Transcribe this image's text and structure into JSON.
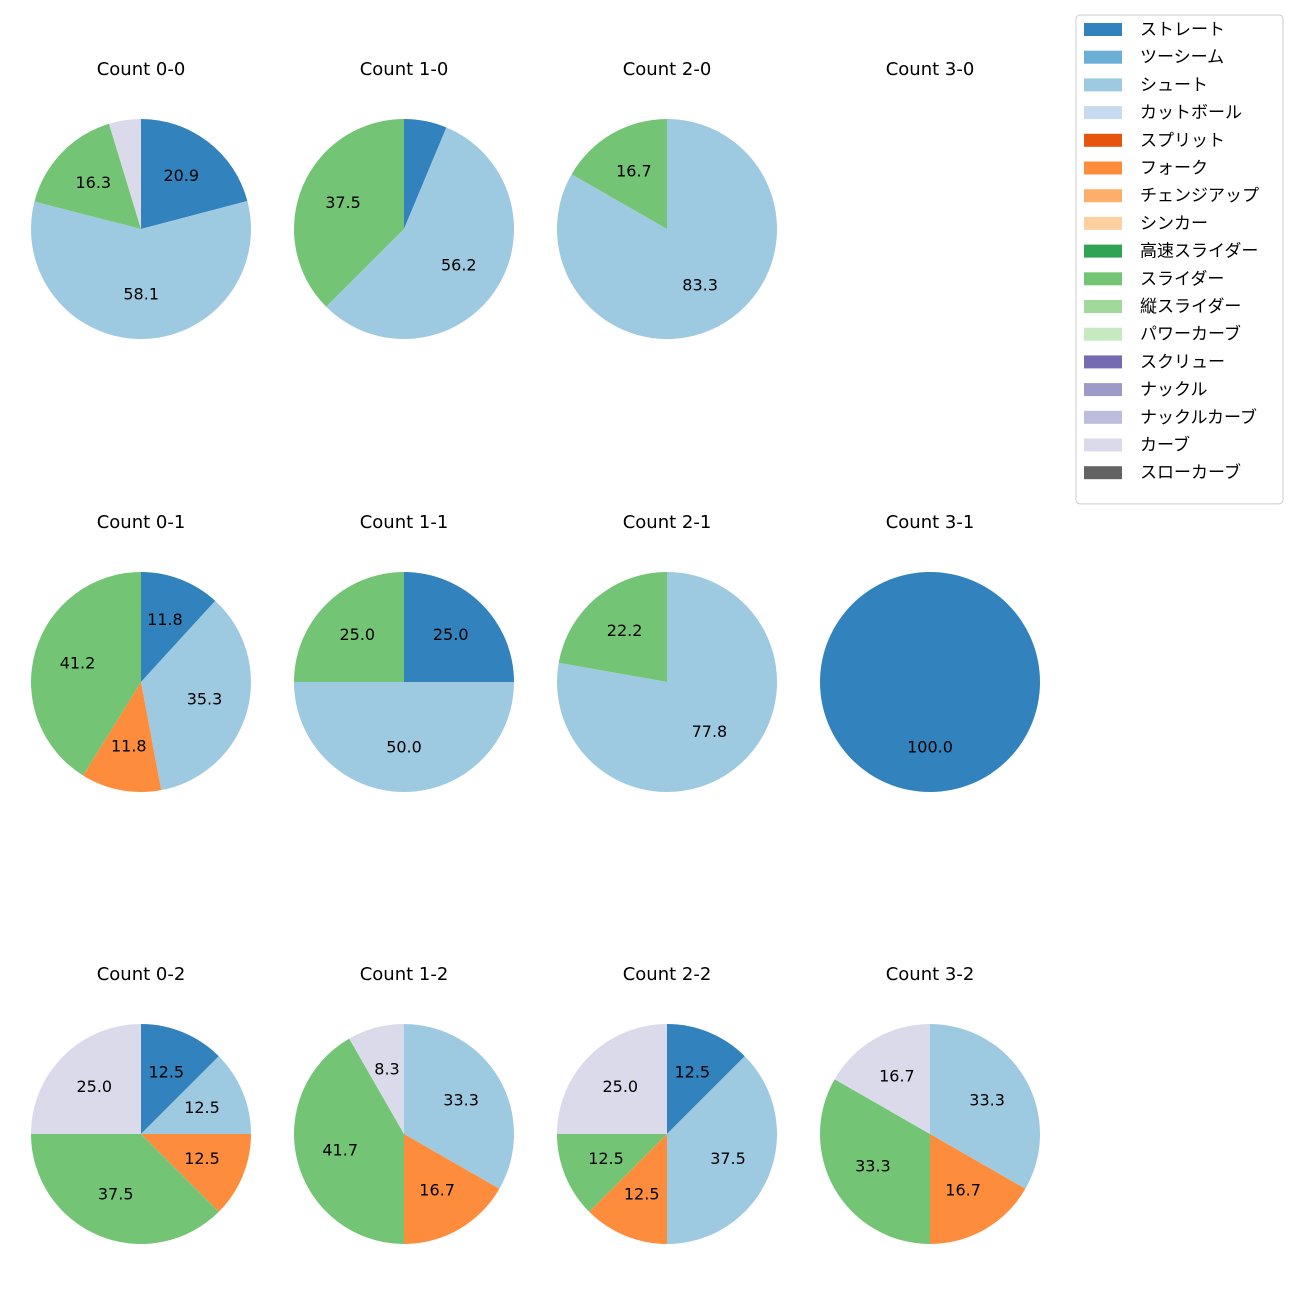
{
  "chart_data": {
    "type": "pie",
    "legend": {
      "placement": "top-right",
      "entries": [
        {
          "label": "ストレート",
          "color": "#3182bd"
        },
        {
          "label": "ツーシーム",
          "color": "#6baed6"
        },
        {
          "label": "シュート",
          "color": "#9ecae1"
        },
        {
          "label": "カットボール",
          "color": "#c6dbef"
        },
        {
          "label": "スプリット",
          "color": "#e6550d"
        },
        {
          "label": "フォーク",
          "color": "#fd8d3c"
        },
        {
          "label": "チェンジアップ",
          "color": "#fdae6b"
        },
        {
          "label": "シンカー",
          "color": "#fdd0a2"
        },
        {
          "label": "高速スライダー",
          "color": "#31a354"
        },
        {
          "label": "スライダー",
          "color": "#74c476"
        },
        {
          "label": "縦スライダー",
          "color": "#a1d99b"
        },
        {
          "label": "パワーカーブ",
          "color": "#c7e9c0"
        },
        {
          "label": "スクリュー",
          "color": "#756bb1"
        },
        {
          "label": "ナックル",
          "color": "#9e9ac8"
        },
        {
          "label": "ナックルカーブ",
          "color": "#bcbddc"
        },
        {
          "label": "カーブ",
          "color": "#dadaeb"
        },
        {
          "label": "スローカーブ",
          "color": "#636363"
        }
      ]
    },
    "charts": [
      {
        "title": "Count 0-0",
        "slices": [
          {
            "pitch": "ストレート",
            "value": 20.9
          },
          {
            "pitch": "シュート",
            "value": 58.1
          },
          {
            "pitch": "スライダー",
            "value": 16.3
          },
          {
            "pitch": "カーブ",
            "value": 4.7,
            "label": ""
          }
        ]
      },
      {
        "title": "Count 1-0",
        "slices": [
          {
            "pitch": "ストレート",
            "value": 6.3,
            "label": ""
          },
          {
            "pitch": "シュート",
            "value": 56.2
          },
          {
            "pitch": "スライダー",
            "value": 37.5
          }
        ]
      },
      {
        "title": "Count 2-0",
        "slices": [
          {
            "pitch": "シュート",
            "value": 83.3
          },
          {
            "pitch": "スライダー",
            "value": 16.7
          }
        ]
      },
      {
        "title": "Count 3-0",
        "slices": []
      },
      {
        "title": "Count 0-1",
        "slices": [
          {
            "pitch": "ストレート",
            "value": 11.8
          },
          {
            "pitch": "シュート",
            "value": 35.3
          },
          {
            "pitch": "フォーク",
            "value": 11.8
          },
          {
            "pitch": "スライダー",
            "value": 41.2
          }
        ]
      },
      {
        "title": "Count 1-1",
        "slices": [
          {
            "pitch": "ストレート",
            "value": 25.0
          },
          {
            "pitch": "シュート",
            "value": 50.0
          },
          {
            "pitch": "スライダー",
            "value": 25.0
          }
        ]
      },
      {
        "title": "Count 2-1",
        "slices": [
          {
            "pitch": "シュート",
            "value": 77.8
          },
          {
            "pitch": "スライダー",
            "value": 22.2
          }
        ]
      },
      {
        "title": "Count 3-1",
        "slices": [
          {
            "pitch": "ストレート",
            "value": 100.0
          }
        ]
      },
      {
        "title": "Count 0-2",
        "slices": [
          {
            "pitch": "ストレート",
            "value": 12.5
          },
          {
            "pitch": "シュート",
            "value": 12.5
          },
          {
            "pitch": "フォーク",
            "value": 12.5
          },
          {
            "pitch": "スライダー",
            "value": 37.5
          },
          {
            "pitch": "カーブ",
            "value": 25.0
          }
        ]
      },
      {
        "title": "Count 1-2",
        "slices": [
          {
            "pitch": "シュート",
            "value": 33.3
          },
          {
            "pitch": "フォーク",
            "value": 16.7
          },
          {
            "pitch": "スライダー",
            "value": 41.7
          },
          {
            "pitch": "カーブ",
            "value": 8.3
          }
        ]
      },
      {
        "title": "Count 2-2",
        "slices": [
          {
            "pitch": "ストレート",
            "value": 12.5
          },
          {
            "pitch": "シュート",
            "value": 37.5
          },
          {
            "pitch": "フォーク",
            "value": 12.5
          },
          {
            "pitch": "スライダー",
            "value": 12.5
          },
          {
            "pitch": "カーブ",
            "value": 25.0
          }
        ]
      },
      {
        "title": "Count 3-2",
        "slices": [
          {
            "pitch": "シュート",
            "value": 33.3
          },
          {
            "pitch": "フォーク",
            "value": 16.7
          },
          {
            "pitch": "スライダー",
            "value": 33.3
          },
          {
            "pitch": "カーブ",
            "value": 16.7
          }
        ]
      }
    ]
  }
}
